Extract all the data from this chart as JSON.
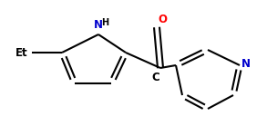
{
  "bg_color": "#ffffff",
  "line_color": "#000000",
  "N_color": "#0000cd",
  "O_color": "#ff0000",
  "lw": 1.5,
  "figsize": [
    2.93,
    1.39
  ],
  "dpi": 100,
  "xlim": [
    0,
    293
  ],
  "ylim": [
    0,
    139
  ]
}
